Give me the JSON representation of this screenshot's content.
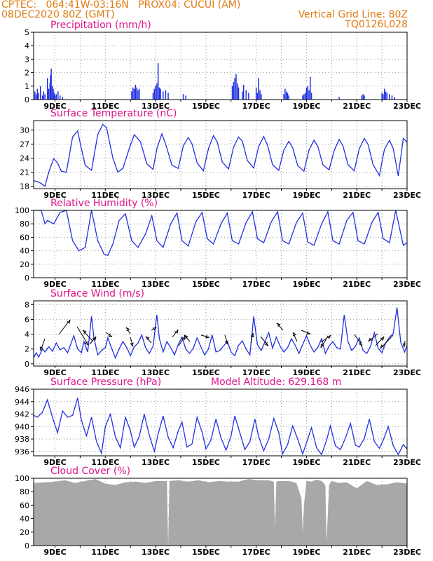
{
  "header": {
    "line1": "CPTEC:   064:41W-03:16N   PROX04: CUCUI (AM)",
    "line2": "08DEC2020 80Z (GMT)",
    "right1": "Vertical Grid Line: 80Z",
    "right2": "TQ0126L028"
  },
  "colors": {
    "header": "#e07a12",
    "title": "#e0148c",
    "series": "#2030e0",
    "cloud": "#a8a8a8",
    "grid": "#9a9a9a"
  },
  "x_tick_labels": [
    "9DEC",
    "11DEC",
    "13DEC",
    "15DEC",
    "17DEC",
    "19DEC",
    "21DEC",
    "23DEC"
  ],
  "chart_data": [
    {
      "id": "precip",
      "type": "bar",
      "title": "Precipitation (mm/h)",
      "ylim": [
        0,
        5
      ],
      "yticks": [
        0,
        1,
        2,
        3,
        4,
        5
      ],
      "xlim_days": [
        8.15,
        23.0
      ],
      "bar_width_days": 0.04,
      "x": [
        8.2,
        8.25,
        8.3,
        8.35,
        8.42,
        8.5,
        8.55,
        8.6,
        8.7,
        8.75,
        8.8,
        8.82,
        8.85,
        8.9,
        8.93,
        8.97,
        9.0,
        9.05,
        9.12,
        9.2,
        9.3,
        12.05,
        12.1,
        12.15,
        12.2,
        12.25,
        12.3,
        12.35,
        12.9,
        12.95,
        13.0,
        13.05,
        13.1,
        13.15,
        13.2,
        13.3,
        13.4,
        13.5,
        14.1,
        14.2,
        16.05,
        16.1,
        16.15,
        16.2,
        16.25,
        16.3,
        16.45,
        16.5,
        16.6,
        16.7,
        17.0,
        17.05,
        17.1,
        17.15,
        17.2,
        18.1,
        18.15,
        18.2,
        18.25,
        18.3,
        18.85,
        18.9,
        18.95,
        19.0,
        19.05,
        19.1,
        19.15,
        19.2,
        20.3,
        21.2,
        21.25,
        21.3,
        22.0,
        22.05,
        22.1,
        22.15,
        22.2,
        22.3,
        22.4,
        22.5
      ],
      "values": [
        0.6,
        0.4,
        0.8,
        0.5,
        1.0,
        0.3,
        0.6,
        0.4,
        1.6,
        0.8,
        1.2,
        1.8,
        2.3,
        1.0,
        0.8,
        0.5,
        0.3,
        0.4,
        0.6,
        0.3,
        0.2,
        0.6,
        0.9,
        0.8,
        1.1,
        0.9,
        0.7,
        0.8,
        0.5,
        0.8,
        1.0,
        1.2,
        2.7,
        0.9,
        0.8,
        0.6,
        0.7,
        0.5,
        0.4,
        0.3,
        1.0,
        1.3,
        1.6,
        1.9,
        1.2,
        0.9,
        0.6,
        1.1,
        0.7,
        0.5,
        0.9,
        0.5,
        1.6,
        0.7,
        0.4,
        0.4,
        0.8,
        0.6,
        0.5,
        0.3,
        0.3,
        0.4,
        0.5,
        0.9,
        1.0,
        0.7,
        1.7,
        0.5,
        0.2,
        0.3,
        0.4,
        0.3,
        0.5,
        0.4,
        0.8,
        0.6,
        0.5,
        0.4,
        0.3,
        0.2
      ]
    },
    {
      "id": "temp",
      "type": "line",
      "title": "Surface Temperature (nC)",
      "ylim": [
        17.5,
        32
      ],
      "yticks": [
        18,
        21,
        24,
        27,
        30
      ],
      "xlim_days": [
        8.15,
        23.0
      ],
      "x": [
        8.15,
        8.3,
        8.45,
        8.6,
        8.75,
        8.95,
        9.1,
        9.25,
        9.45,
        9.7,
        9.9,
        10.05,
        10.2,
        10.45,
        10.7,
        10.9,
        11.05,
        11.3,
        11.5,
        11.7,
        11.95,
        12.15,
        12.4,
        12.65,
        12.9,
        13.05,
        13.25,
        13.4,
        13.65,
        13.9,
        14.1,
        14.3,
        14.45,
        14.65,
        14.9,
        15.1,
        15.3,
        15.45,
        15.65,
        15.9,
        16.1,
        16.3,
        16.45,
        16.65,
        16.9,
        17.1,
        17.3,
        17.45,
        17.65,
        17.9,
        18.1,
        18.3,
        18.45,
        18.65,
        18.9,
        19.1,
        19.3,
        19.45,
        19.65,
        19.9,
        20.1,
        20.3,
        20.45,
        20.65,
        20.9,
        21.1,
        21.3,
        21.45,
        21.65,
        21.9,
        22.1,
        22.3,
        22.45,
        22.65,
        22.85,
        23.0
      ],
      "values": [
        19.2,
        19.0,
        18.6,
        18.0,
        21.0,
        23.9,
        23.0,
        21.2,
        21.0,
        28.5,
        29.8,
        26.0,
        22.5,
        21.4,
        29.0,
        31.2,
        30.5,
        24.0,
        21.0,
        21.8,
        26.0,
        29.0,
        27.5,
        22.8,
        21.6,
        26.0,
        29.2,
        27.0,
        22.5,
        21.8,
        26.6,
        28.4,
        27.0,
        23.0,
        21.3,
        26.0,
        28.8,
        27.5,
        23.2,
        21.7,
        26.3,
        28.5,
        27.6,
        23.5,
        21.9,
        26.5,
        28.6,
        26.8,
        22.6,
        21.4,
        25.7,
        27.6,
        26.2,
        22.4,
        21.2,
        25.7,
        27.8,
        26.5,
        22.6,
        21.5,
        25.6,
        28.0,
        26.6,
        22.6,
        21.3,
        26.0,
        28.2,
        26.9,
        22.6,
        20.3,
        25.9,
        27.8,
        26.0,
        20.2,
        28.2,
        27.4
      ]
    },
    {
      "id": "rh",
      "type": "line",
      "title": "Relative Humidity (%)",
      "ylim": [
        0,
        100
      ],
      "yticks": [
        0,
        20,
        40,
        60,
        80,
        100
      ],
      "xlim_days": [
        8.15,
        23.0
      ],
      "x": [
        8.15,
        8.45,
        8.6,
        8.7,
        8.95,
        9.2,
        9.45,
        9.7,
        9.95,
        10.2,
        10.45,
        10.7,
        10.95,
        11.1,
        11.3,
        11.55,
        11.8,
        12.05,
        12.3,
        12.6,
        12.85,
        13.05,
        13.3,
        13.6,
        13.85,
        14.05,
        14.3,
        14.6,
        14.85,
        15.05,
        15.3,
        15.6,
        15.85,
        16.05,
        16.3,
        16.6,
        16.85,
        17.05,
        17.3,
        17.6,
        17.85,
        18.05,
        18.3,
        18.6,
        18.85,
        19.05,
        19.3,
        19.6,
        19.85,
        20.05,
        20.3,
        20.6,
        20.85,
        21.05,
        21.3,
        21.6,
        21.85,
        22.05,
        22.3,
        22.55,
        22.85,
        23.0
      ],
      "values": [
        100,
        100,
        80,
        85,
        80,
        97,
        100,
        55,
        40,
        45,
        100,
        55,
        35,
        33,
        50,
        85,
        95,
        55,
        45,
        65,
        92,
        55,
        45,
        80,
        96,
        55,
        47,
        83,
        97,
        58,
        50,
        80,
        96,
        55,
        50,
        82,
        98,
        58,
        52,
        83,
        98,
        55,
        50,
        82,
        96,
        53,
        48,
        80,
        98,
        55,
        50,
        85,
        97,
        55,
        50,
        82,
        97,
        58,
        52,
        100,
        48,
        52
      ]
    },
    {
      "id": "wind",
      "type": "line",
      "title": "Surface Wind (m/s)",
      "ylim": [
        -0.3,
        8.5
      ],
      "yticks": [
        0,
        2,
        4,
        6,
        8
      ],
      "xlim_days": [
        8.15,
        23.0
      ],
      "x": [
        8.15,
        8.25,
        8.35,
        8.5,
        8.6,
        8.75,
        8.9,
        9.05,
        9.2,
        9.35,
        9.5,
        9.6,
        9.75,
        9.9,
        10.05,
        10.15,
        10.3,
        10.45,
        10.55,
        10.7,
        10.85,
        11.0,
        11.1,
        11.25,
        11.4,
        11.55,
        11.7,
        11.85,
        12.0,
        12.15,
        12.3,
        12.45,
        12.6,
        12.75,
        12.9,
        13.05,
        13.15,
        13.3,
        13.45,
        13.6,
        13.75,
        13.9,
        14.05,
        14.2,
        14.35,
        14.5,
        14.65,
        14.8,
        14.95,
        15.1,
        15.25,
        15.4,
        15.55,
        15.7,
        15.85,
        16.0,
        16.15,
        16.3,
        16.45,
        16.6,
        16.75,
        16.9,
        17.05,
        17.2,
        17.35,
        17.5,
        17.65,
        17.8,
        17.95,
        18.1,
        18.25,
        18.4,
        18.55,
        18.7,
        18.85,
        19.0,
        19.15,
        19.3,
        19.45,
        19.6,
        19.75,
        19.9,
        20.05,
        20.2,
        20.35,
        20.5,
        20.65,
        20.8,
        20.95,
        21.1,
        21.25,
        21.4,
        21.55,
        21.7,
        21.85,
        22.0,
        22.15,
        22.3,
        22.45,
        22.6,
        22.75,
        22.9,
        23.0
      ],
      "values": [
        0.8,
        1.5,
        0.9,
        2.0,
        1.6,
        2.3,
        1.7,
        2.8,
        1.9,
        2.2,
        1.5,
        2.4,
        3.8,
        2.0,
        1.5,
        3.0,
        1.6,
        6.4,
        3.5,
        1.2,
        1.8,
        2.2,
        3.5,
        2.1,
        0.8,
        2.0,
        3.0,
        2.2,
        1.1,
        2.3,
        2.8,
        3.9,
        2.2,
        1.4,
        2.4,
        6.6,
        3.4,
        1.6,
        3.0,
        2.2,
        1.2,
        2.6,
        3.6,
        2.0,
        1.4,
        2.1,
        3.5,
        2.3,
        1.2,
        2.0,
        3.9,
        1.6,
        1.8,
        2.4,
        3.0,
        1.6,
        1.1,
        2.5,
        3.1,
        2.0,
        1.2,
        6.4,
        2.6,
        1.8,
        3.0,
        4.2,
        2.1,
        3.6,
        2.4,
        1.6,
        2.2,
        3.4,
        2.5,
        1.4,
        2.6,
        3.8,
        2.5,
        1.6,
        2.2,
        3.4,
        1.4,
        2.4,
        3.0,
        2.2,
        2.0,
        6.6,
        3.0,
        1.8,
        2.4,
        3.5,
        1.8,
        1.4,
        2.4,
        4.2,
        2.1,
        1.5,
        2.8,
        3.6,
        4.1,
        7.6,
        2.9,
        1.6,
        2.5
      ]
    },
    {
      "id": "pressure",
      "type": "line",
      "title": "Surface Pressure (hPa)",
      "annotation": "Model Altitude: 629.168  m",
      "ylim": [
        935.3,
        946
      ],
      "yticks": [
        936,
        938,
        940,
        942,
        944,
        946
      ],
      "xlim_days": [
        8.15,
        23.0
      ],
      "x": [
        8.15,
        8.3,
        8.5,
        8.7,
        8.9,
        9.1,
        9.3,
        9.5,
        9.7,
        9.9,
        10.05,
        10.25,
        10.45,
        10.65,
        10.85,
        11.0,
        11.2,
        11.4,
        11.6,
        11.8,
        12.0,
        12.15,
        12.35,
        12.55,
        12.75,
        12.95,
        13.1,
        13.3,
        13.5,
        13.7,
        13.9,
        14.05,
        14.25,
        14.45,
        14.65,
        14.85,
        15.0,
        15.2,
        15.4,
        15.6,
        15.8,
        16.0,
        16.15,
        16.35,
        16.55,
        16.75,
        16.95,
        17.1,
        17.3,
        17.5,
        17.7,
        17.9,
        18.05,
        18.25,
        18.45,
        18.65,
        18.85,
        19.0,
        19.2,
        19.4,
        19.6,
        19.8,
        19.95,
        20.15,
        20.35,
        20.55,
        20.75,
        20.95,
        21.1,
        21.3,
        21.5,
        21.7,
        21.9,
        22.05,
        22.25,
        22.45,
        22.65,
        22.85,
        23.0
      ],
      "values": [
        941.8,
        941.5,
        942.3,
        944.3,
        941.5,
        939.0,
        942.5,
        941.5,
        941.8,
        944.6,
        941.0,
        938.5,
        941.5,
        937.6,
        935.7,
        940.0,
        942.0,
        938.4,
        936.6,
        941.5,
        939.3,
        936.7,
        938.4,
        942.0,
        938.6,
        936.0,
        938.8,
        941.7,
        938.3,
        936.6,
        939.3,
        940.7,
        936.7,
        937.2,
        941.5,
        939.1,
        936.4,
        937.8,
        941.2,
        938.2,
        936.2,
        938.5,
        941.7,
        939.0,
        936.3,
        937.6,
        941.2,
        938.4,
        936.1,
        938.0,
        941.3,
        939.0,
        935.6,
        937.1,
        940.1,
        938.0,
        935.6,
        937.4,
        939.8,
        936.6,
        935.5,
        937.8,
        940.1,
        936.9,
        936.3,
        938.2,
        940.5,
        937.0,
        936.7,
        938.1,
        941.2,
        937.6,
        936.5,
        937.8,
        940.0,
        936.9,
        935.5,
        937.1,
        936.4
      ]
    },
    {
      "id": "cloud",
      "type": "area",
      "title": "Cloud Cover (%)",
      "ylim": [
        0,
        100
      ],
      "yticks": [
        0,
        20,
        40,
        60,
        80,
        100
      ],
      "xlim_days": [
        8.15,
        23.0
      ],
      "x": [
        8.15,
        8.6,
        9.0,
        9.4,
        9.8,
        10.2,
        10.6,
        11.0,
        11.4,
        11.8,
        12.2,
        12.6,
        13.0,
        13.45,
        13.5,
        13.55,
        13.9,
        14.3,
        14.7,
        15.1,
        15.5,
        15.9,
        16.3,
        16.7,
        17.1,
        17.5,
        17.7,
        17.75,
        17.8,
        17.9,
        18.3,
        18.6,
        18.8,
        18.85,
        18.9,
        19.0,
        19.2,
        19.4,
        19.6,
        19.75,
        19.8,
        19.9,
        20.0,
        20.3,
        20.6,
        21.0,
        21.4,
        21.8,
        22.2,
        22.6,
        23.0
      ],
      "values": [
        93,
        94,
        95,
        97,
        93,
        96,
        99,
        92,
        90,
        94,
        95,
        93,
        96,
        96,
        0,
        96,
        97,
        95,
        97,
        94,
        96,
        95,
        95,
        99,
        97,
        97,
        95,
        25,
        95,
        96,
        96,
        93,
        70,
        20,
        60,
        96,
        95,
        98,
        96,
        90,
        6,
        90,
        96,
        93,
        94,
        85,
        96,
        90,
        91,
        94,
        92
      ]
    }
  ]
}
